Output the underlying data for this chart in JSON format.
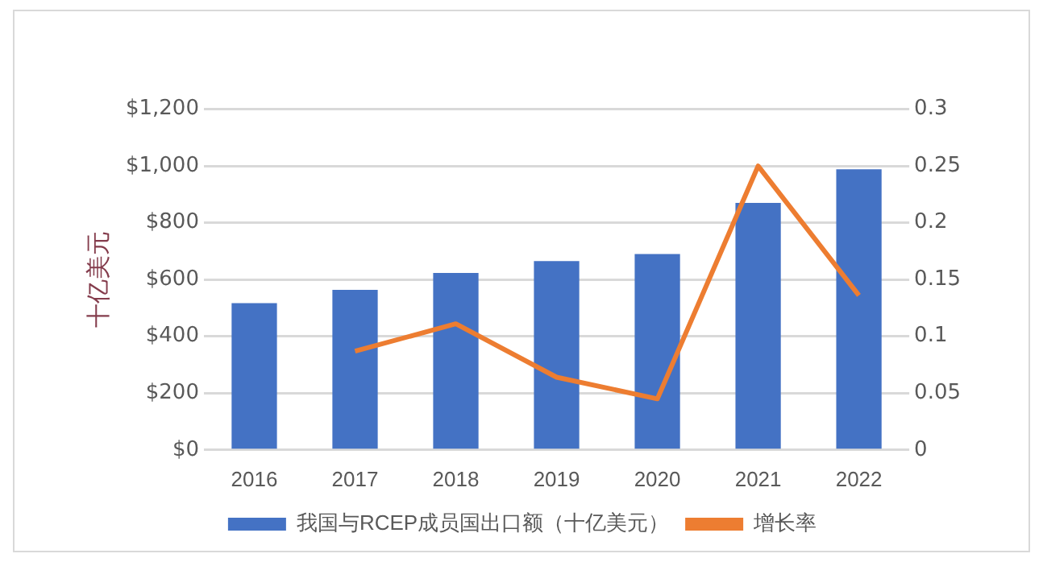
{
  "chart_data": {
    "type": "bar",
    "ylabel": "十亿美元",
    "categories": [
      "2016",
      "2017",
      "2018",
      "2019",
      "2020",
      "2021",
      "2022"
    ],
    "series": [
      {
        "name": "我国与RCEP成员国出口额（十亿美元）",
        "color": "#4472c4",
        "values": [
          517,
          564,
          623,
          665,
          690,
          870,
          988
        ]
      },
      {
        "name": "增长率",
        "type": "line",
        "axis": "y2",
        "color": "#ed7d31",
        "values": [
          null,
          0.087,
          0.111,
          0.064,
          0.045,
          0.25,
          0.136
        ]
      }
    ],
    "ylim": [
      0,
      1200
    ],
    "yticks": [
      {
        "value": 0,
        "label": "$0"
      },
      {
        "value": 200,
        "label": "$200"
      },
      {
        "value": 400,
        "label": "$400"
      },
      {
        "value": 600,
        "label": "$600"
      },
      {
        "value": 800,
        "label": "$800"
      },
      {
        "value": 1000,
        "label": "$1,000"
      },
      {
        "value": 1200,
        "label": "$1,200"
      }
    ],
    "y2lim": [
      0,
      0.3
    ],
    "y2ticks": [
      0,
      0.05,
      0.1,
      0.15,
      0.2,
      0.25,
      0.3
    ],
    "grid": "y",
    "legend": "bottom",
    "marker": "none"
  }
}
